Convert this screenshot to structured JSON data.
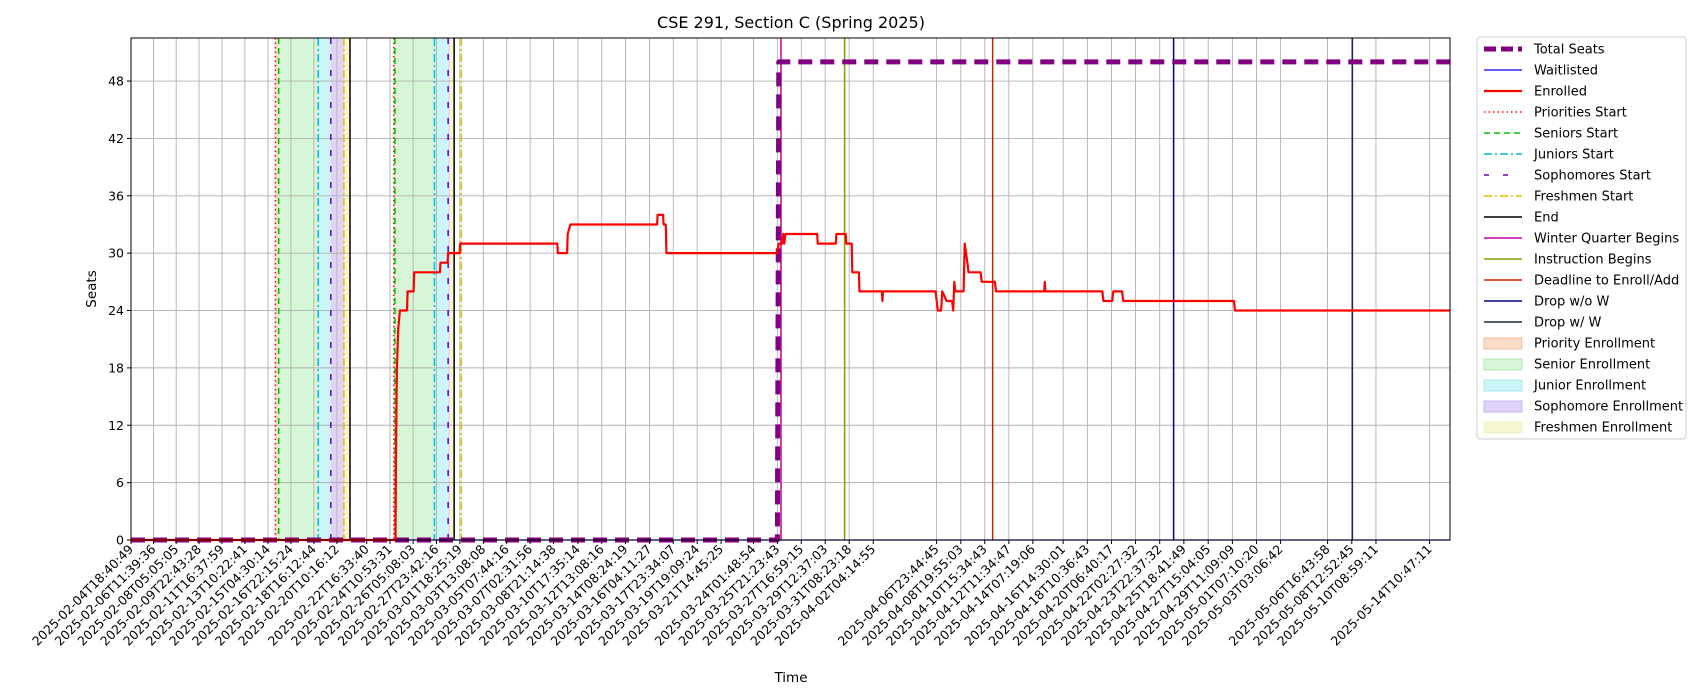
{
  "chart_data": {
    "type": "line",
    "title": "CSE 291, Section C (Spring 2025)",
    "xlabel": "Time",
    "ylabel": "Seats",
    "ylim": [
      0,
      52.5
    ],
    "y_ticks": [
      0,
      6,
      12,
      18,
      24,
      30,
      36,
      42,
      48
    ],
    "xlim": [
      "2025-02-04T18:40:49",
      "2025-05-16T00:00:00"
    ],
    "x_ticks": [
      "2025-02-04T18:40:49",
      "2025-02-06T11:39:36",
      "2025-02-08T05:05:05",
      "2025-02-09T22:43:28",
      "2025-02-11T16:37:59",
      "2025-02-13T10:22:41",
      "2025-02-15T04:30:14",
      "2025-02-16T22:15:24",
      "2025-02-18T16:12:44",
      "2025-02-20T10:16:12",
      "2025-02-22T16:33:40",
      "2025-02-24T10:53:31",
      "2025-02-26T05:08:03",
      "2025-02-27T23:42:16",
      "2025-03-01T18:25:19",
      "2025-03-03T13:08:08",
      "2025-03-05T07:44:16",
      "2025-03-07T02:31:56",
      "2025-03-08T21:14:38",
      "2025-03-10T17:35:14",
      "2025-03-12T13:08:16",
      "2025-03-14T08:24:19",
      "2025-03-16T04:11:27",
      "2025-03-17T23:34:07",
      "2025-03-19T19:09:24",
      "2025-03-21T14:45:25",
      "2025-03-24T01:48:54",
      "2025-03-25T21:23:43",
      "2025-03-27T16:59:15",
      "2025-03-29T12:37:03",
      "2025-03-31T08:23:18",
      "2025-04-02T04:14:55",
      "2025-04-06T23:44:45",
      "2025-04-08T19:55:03",
      "2025-04-10T15:34:43",
      "2025-04-12T11:34:47",
      "2025-04-14T07:19:06",
      "2025-04-16T14:30:01",
      "2025-04-18T10:36:43",
      "2025-04-20T06:40:17",
      "2025-04-22T02:27:32",
      "2025-04-23T22:37:32",
      "2025-04-25T18:41:49",
      "2025-04-27T15:04:05",
      "2025-04-29T11:09:09",
      "2025-05-01T07:10:20",
      "2025-05-03T03:06:42",
      "2025-05-06T16:43:58",
      "2025-05-08T12:52:45",
      "2025-05-10T08:59:11",
      "2025-05-14T10:47:11"
    ],
    "grid": true,
    "legend_placement": "outside-right",
    "series": [
      {
        "name": "Total Seats",
        "color": "#800080",
        "style": "dashed",
        "points": [
          [
            "2025-02-04T18:40:49",
            0
          ],
          [
            "2025-03-25T21:23:43",
            0
          ],
          [
            "2025-03-26T00:00:00",
            50
          ],
          [
            "2025-05-16T00:00:00",
            50
          ]
        ]
      },
      {
        "name": "Waitlisted",
        "color": "#0000ff",
        "style": "solid",
        "points": [
          [
            "2025-02-04T18:40:49",
            0
          ],
          [
            "2025-05-16T00:00:00",
            0
          ]
        ]
      },
      {
        "name": "Enrolled",
        "color": "#ff0000",
        "style": "solid",
        "points": [
          [
            "2025-02-04T18:40:49",
            0
          ],
          [
            "2025-02-24T21:00:00",
            0
          ],
          [
            "2025-02-24T22:00:00",
            9
          ],
          [
            "2025-02-24T23:30:00",
            18
          ],
          [
            "2025-02-25T02:00:00",
            22
          ],
          [
            "2025-02-25T05:00:00",
            24
          ],
          [
            "2025-02-25T18:00:00",
            24
          ],
          [
            "2025-02-25T19:00:00",
            26
          ],
          [
            "2025-02-26T06:00:00",
            26
          ],
          [
            "2025-02-26T07:00:00",
            28
          ],
          [
            "2025-02-28T06:00:00",
            28
          ],
          [
            "2025-02-28T07:00:00",
            29
          ],
          [
            "2025-02-28T20:00:00",
            29
          ],
          [
            "2025-02-28T21:00:00",
            30
          ],
          [
            "2025-03-01T18:00:00",
            30
          ],
          [
            "2025-03-01T19:00:00",
            31
          ],
          [
            "2025-03-09T04:00:00",
            31
          ],
          [
            "2025-03-09T05:00:00",
            30
          ],
          [
            "2025-03-09T22:00:00",
            30
          ],
          [
            "2025-03-09T23:00:00",
            32
          ],
          [
            "2025-03-10T04:00:00",
            33
          ],
          [
            "2025-03-16T18:00:00",
            33
          ],
          [
            "2025-03-16T19:00:00",
            34
          ],
          [
            "2025-03-17T05:00:00",
            34
          ],
          [
            "2025-03-17T06:00:00",
            33
          ],
          [
            "2025-03-17T10:00:00",
            33
          ],
          [
            "2025-03-17T11:00:00",
            30
          ],
          [
            "2025-03-25T21:00:00",
            30
          ],
          [
            "2025-03-26T00:00:00",
            31
          ],
          [
            "2025-03-26T06:00:00",
            31
          ],
          [
            "2025-03-26T08:00:00",
            32
          ],
          [
            "2025-03-26T10:00:00",
            31
          ],
          [
            "2025-03-26T12:00:00",
            32
          ],
          [
            "2025-03-28T22:00:00",
            32
          ],
          [
            "2025-03-28T23:00:00",
            31
          ],
          [
            "2025-03-30T08:00:00",
            31
          ],
          [
            "2025-03-30T09:00:00",
            32
          ],
          [
            "2025-03-31T02:00:00",
            32
          ],
          [
            "2025-03-31T03:00:00",
            31
          ],
          [
            "2025-03-31T13:00:00",
            31
          ],
          [
            "2025-03-31T14:00:00",
            28
          ],
          [
            "2025-04-01T02:00:00",
            28
          ],
          [
            "2025-04-01T03:00:00",
            26
          ],
          [
            "2025-04-02T20:00:00",
            26
          ],
          [
            "2025-04-02T21:00:00",
            25
          ],
          [
            "2025-04-02T22:00:00",
            26
          ],
          [
            "2025-04-06T22:00:00",
            26
          ],
          [
            "2025-04-07T00:00:00",
            25
          ],
          [
            "2025-04-07T02:00:00",
            24
          ],
          [
            "2025-04-07T08:00:00",
            24
          ],
          [
            "2025-04-07T10:00:00",
            26
          ],
          [
            "2025-04-07T18:00:00",
            25
          ],
          [
            "2025-04-08T04:00:00",
            25
          ],
          [
            "2025-04-08T06:00:00",
            24
          ],
          [
            "2025-04-08T08:00:00",
            27
          ],
          [
            "2025-04-08T10:00:00",
            26
          ],
          [
            "2025-04-09T01:00:00",
            26
          ],
          [
            "2025-04-09T03:00:00",
            31
          ],
          [
            "2025-04-09T08:00:00",
            29
          ],
          [
            "2025-04-09T10:00:00",
            28
          ],
          [
            "2025-04-10T08:00:00",
            28
          ],
          [
            "2025-04-10T10:00:00",
            27
          ],
          [
            "2025-04-11T10:00:00",
            27
          ],
          [
            "2025-04-11T12:00:00",
            26
          ],
          [
            "2025-04-15T04:00:00",
            26
          ],
          [
            "2025-04-15T05:00:00",
            27
          ],
          [
            "2025-04-15T06:00:00",
            26
          ],
          [
            "2025-04-19T14:00:00",
            26
          ],
          [
            "2025-04-19T16:00:00",
            25
          ],
          [
            "2025-04-20T08:00:00",
            25
          ],
          [
            "2025-04-20T10:00:00",
            26
          ],
          [
            "2025-04-21T02:00:00",
            26
          ],
          [
            "2025-04-21T04:00:00",
            25
          ],
          [
            "2025-04-29T14:00:00",
            25
          ],
          [
            "2025-04-29T16:00:00",
            24
          ],
          [
            "2025-05-16T00:00:00",
            24
          ]
        ]
      }
    ],
    "vertical_markers": [
      {
        "name": "Priorities Start",
        "color": "#ff0000",
        "style": "dotted",
        "dates": [
          "2025-02-15T18:00:00",
          "2025-02-24T18:00:00"
        ]
      },
      {
        "name": "Seniors Start",
        "color": "#00c000",
        "style": "dashed",
        "dates": [
          "2025-02-16T00:00:00",
          "2025-02-24T20:00:00"
        ]
      },
      {
        "name": "Juniors Start",
        "color": "#00bcd4",
        "style": "dashdot",
        "dates": [
          "2025-02-19T00:00:00",
          "2025-02-27T20:00:00"
        ]
      },
      {
        "name": "Sophomores Start",
        "color": "#6600cc",
        "style": "loosedash",
        "dates": [
          "2025-02-19T23:00:00",
          "2025-02-28T21:00:00"
        ]
      },
      {
        "name": "Freshmen Start",
        "color": "#e0c000",
        "style": "dashdot",
        "dates": [
          "2025-02-20T23:00:00",
          "2025-02-29T21:00:00"
        ]
      },
      {
        "name": "End",
        "color": "#000000",
        "style": "solid",
        "dates": [
          "2025-02-21T10:00:00",
          "2025-03-01T08:00:00"
        ]
      },
      {
        "name": "Winter Quarter Begins",
        "color": "#c000a0",
        "style": "solid",
        "dates": [
          "2025-03-26T04:00:00"
        ]
      },
      {
        "name": "Instruction Begins",
        "color": "#80a000",
        "style": "solid",
        "dates": [
          "2025-03-31T00:00:00"
        ]
      },
      {
        "name": "Deadline to Enroll/Add",
        "color": "#cc2200",
        "style": "solid",
        "dates": [
          "2025-04-11T06:00:00"
        ]
      },
      {
        "name": "Drop w/o W",
        "color": "#000080",
        "style": "solid",
        "dates": [
          "2025-04-25T00:00:00"
        ]
      },
      {
        "name": "Drop w/ W",
        "color": "#1a2a40",
        "style": "solid",
        "dates": [
          "2025-05-08T14:00:00"
        ]
      }
    ],
    "shaded_periods": [
      {
        "name": "Priority Enrollment",
        "color": "#f4b183",
        "alpha": 0.45,
        "ranges": [
          [
            "2025-02-15T18:00:00",
            "2025-02-16T00:00:00"
          ],
          [
            "2025-02-24T18:00:00",
            "2025-02-24T20:00:00"
          ]
        ]
      },
      {
        "name": "Senior Enrollment",
        "color": "#9be89b",
        "alpha": 0.4,
        "ranges": [
          [
            "2025-02-16T00:00:00",
            "2025-02-19T00:00:00"
          ],
          [
            "2025-02-24T20:00:00",
            "2025-02-27T20:00:00"
          ]
        ]
      },
      {
        "name": "Junior Enrollment",
        "color": "#8ee8ee",
        "alpha": 0.45,
        "ranges": [
          [
            "2025-02-19T00:00:00",
            "2025-02-19T23:00:00"
          ],
          [
            "2025-02-27T20:00:00",
            "2025-02-28T21:00:00"
          ]
        ]
      },
      {
        "name": "Sophomore Enrollment",
        "color": "#c0a8f0",
        "alpha": 0.5,
        "ranges": [
          [
            "2025-02-19T23:00:00",
            "2025-02-20T23:00:00"
          ],
          [
            "2025-02-28T21:00:00",
            "2025-03-01T00:00:00"
          ]
        ]
      },
      {
        "name": "Freshmen Enrollment",
        "color": "#f0f0b0",
        "alpha": 0.6,
        "ranges": [
          [
            "2025-02-20T23:00:00",
            "2025-02-21T10:00:00"
          ],
          [
            "2025-03-01T00:00:00",
            "2025-03-01T08:00:00"
          ]
        ]
      }
    ],
    "legend": [
      {
        "label": "Total Seats",
        "kind": "line",
        "color": "#800080",
        "style": "dashed",
        "width": 5
      },
      {
        "label": "Waitlisted",
        "kind": "line",
        "color": "#0000ff",
        "style": "solid",
        "width": 1.2
      },
      {
        "label": "Enrolled",
        "kind": "line",
        "color": "#ff0000",
        "style": "solid",
        "width": 2.2
      },
      {
        "label": "Priorities Start",
        "kind": "line",
        "color": "#ff0000",
        "style": "dotted",
        "width": 1.4
      },
      {
        "label": "Seniors Start",
        "kind": "line",
        "color": "#00c000",
        "style": "dashed",
        "width": 1.4
      },
      {
        "label": "Juniors Start",
        "kind": "line",
        "color": "#00bcd4",
        "style": "dashdot",
        "width": 1.4
      },
      {
        "label": "Sophomores Start",
        "kind": "line",
        "color": "#6600cc",
        "style": "loosedash",
        "width": 1.6
      },
      {
        "label": "Freshmen Start",
        "kind": "line",
        "color": "#e0c000",
        "style": "dashdot",
        "width": 1.4
      },
      {
        "label": "End",
        "kind": "line",
        "color": "#000000",
        "style": "solid",
        "width": 1.6
      },
      {
        "label": "Winter Quarter Begins",
        "kind": "line",
        "color": "#c000a0",
        "style": "solid",
        "width": 1.4
      },
      {
        "label": "Instruction Begins",
        "kind": "line",
        "color": "#80a000",
        "style": "solid",
        "width": 1.4
      },
      {
        "label": "Deadline to Enroll/Add",
        "kind": "line",
        "color": "#cc2200",
        "style": "solid",
        "width": 1.4
      },
      {
        "label": "Drop w/o W",
        "kind": "line",
        "color": "#000080",
        "style": "solid",
        "width": 1.4
      },
      {
        "label": "Drop w/ W",
        "kind": "line",
        "color": "#1a2a40",
        "style": "solid",
        "width": 1.4
      },
      {
        "label": "Priority Enrollment",
        "kind": "patch",
        "color": "#f4b183",
        "alpha": 0.45
      },
      {
        "label": "Senior Enrollment",
        "kind": "patch",
        "color": "#9be89b",
        "alpha": 0.4
      },
      {
        "label": "Junior Enrollment",
        "kind": "patch",
        "color": "#8ee8ee",
        "alpha": 0.45
      },
      {
        "label": "Sophomore Enrollment",
        "kind": "patch",
        "color": "#c0a8f0",
        "alpha": 0.5
      },
      {
        "label": "Freshmen Enrollment",
        "kind": "patch",
        "color": "#f0f0b0",
        "alpha": 0.6
      }
    ]
  }
}
